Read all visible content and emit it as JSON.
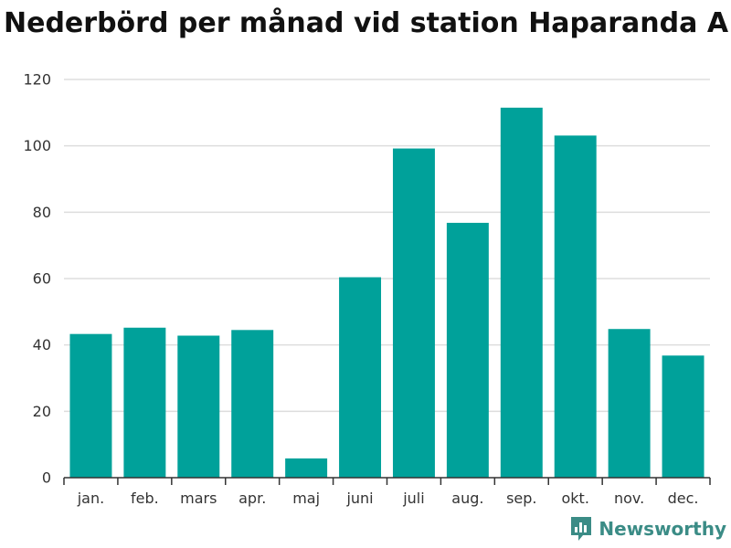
{
  "chart_data": {
    "type": "bar",
    "title": "Nederbörd per månad vid station Haparanda A",
    "xlabel": "",
    "ylabel": "",
    "categories": [
      "jan.",
      "feb.",
      "mars",
      "apr.",
      "maj",
      "juni",
      "juli",
      "aug.",
      "sep.",
      "okt.",
      "nov.",
      "dec."
    ],
    "values": [
      43.3,
      45.2,
      42.8,
      44.5,
      5.8,
      60.4,
      99.2,
      76.8,
      111.5,
      103.1,
      44.8,
      36.8
    ],
    "ylim": [
      0,
      120
    ],
    "yticks": [
      0,
      20,
      40,
      60,
      80,
      100,
      120
    ],
    "grid": true,
    "legend": "none",
    "colors": {
      "bar": "#00a19a",
      "grid": "#dddddd",
      "axis": "#333333",
      "text": "#333333"
    }
  },
  "branding": {
    "name": "Newsworthy",
    "icon": "bar-chart-icon",
    "color": "#3b8c86"
  }
}
